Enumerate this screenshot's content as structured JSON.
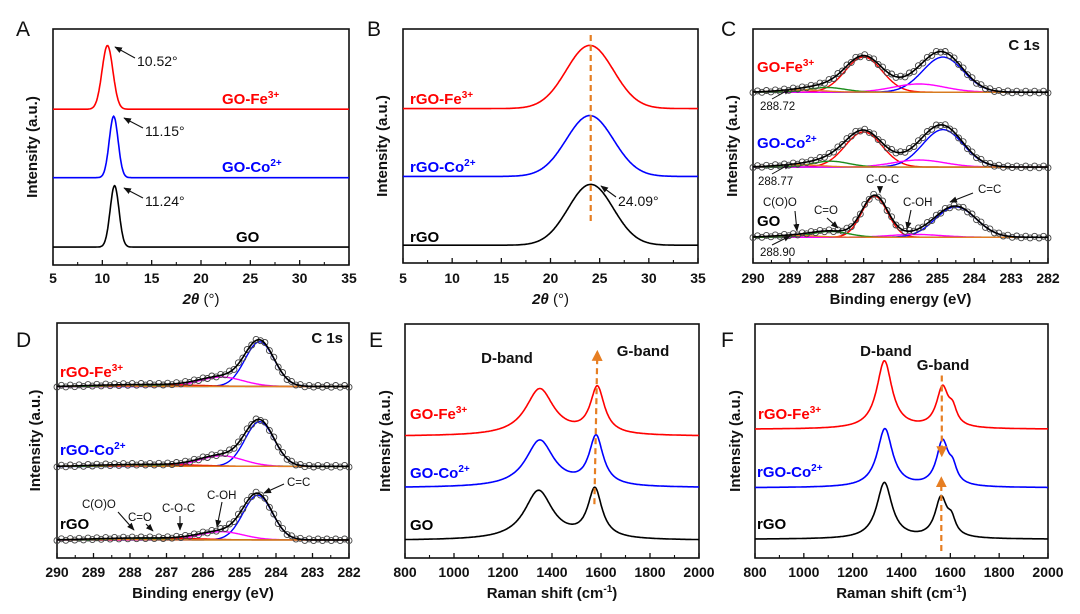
{
  "colors": {
    "red": "#ff0000",
    "blue": "#0000ff",
    "black": "#000000",
    "green": "#1a8c1a",
    "magenta": "#ff00ff",
    "orange": "#e67e22"
  },
  "chart_data": [
    {
      "panel": "A",
      "type": "line",
      "xlabel_italic": "2θ",
      "xlabel_unit": " (°)",
      "ylabel": "Intensity (a.u.)",
      "xlim": [
        5,
        35
      ],
      "xticks": [
        5,
        10,
        15,
        20,
        25,
        30,
        35
      ],
      "ylim": [
        0,
        1
      ],
      "series": [
        {
          "label": "GO-Fe",
          "sup": "3+",
          "color": "#ff0000",
          "offset": 0.66,
          "peaks": [
            [
              10.52,
              0.27,
              0.55,
              "g"
            ]
          ]
        },
        {
          "label": "GO-Co",
          "sup": "2+",
          "color": "#0000ff",
          "offset": 0.37,
          "peaks": [
            [
              11.15,
              0.26,
              0.45,
              "g"
            ]
          ]
        },
        {
          "label": "GO",
          "sup": "",
          "color": "#000000",
          "offset": 0.076,
          "peaks": [
            [
              11.24,
              0.26,
              0.45,
              "g"
            ]
          ]
        }
      ],
      "annotations": [
        "10.52°",
        "11.15°",
        "11.24°"
      ]
    },
    {
      "panel": "B",
      "type": "line",
      "xlabel_italic": "2θ",
      "xlabel_unit": " (°)",
      "ylabel": "Intensity (a.u.)",
      "xlim": [
        5,
        35
      ],
      "xticks": [
        5,
        10,
        15,
        20,
        25,
        30,
        35
      ],
      "ylim": [
        0,
        1
      ],
      "series": [
        {
          "label": "rGO-Fe",
          "sup": "3+",
          "color": "#ff0000",
          "offset": 0.66,
          "peaks": [
            [
              24.0,
              0.27,
              2.4,
              "g"
            ]
          ]
        },
        {
          "label": "rGO-Co",
          "sup": "2+",
          "color": "#0000ff",
          "offset": 0.37,
          "peaks": [
            [
              24.0,
              0.26,
              2.4,
              "g"
            ]
          ]
        },
        {
          "label": "rGO",
          "sup": "",
          "color": "#000000",
          "offset": 0.076,
          "peaks": [
            [
              24.09,
              0.26,
              2.3,
              "g"
            ]
          ]
        }
      ],
      "reference_line": 24.09,
      "annotations": [
        "24.09°"
      ]
    },
    {
      "panel": "C",
      "type": "xps-fit",
      "title": "C 1s",
      "xlabel": "Binding energy (eV)",
      "ylabel": "Intensity (a.u.)",
      "xlim": [
        290,
        282
      ],
      "xticks": [
        290,
        289,
        288,
        287,
        286,
        285,
        284,
        283,
        282
      ],
      "ylim": [
        0,
        1
      ],
      "series": [
        {
          "label": "GO-Fe",
          "sup": "3+",
          "color": "#ff0000",
          "offset": 0.73,
          "components": [
            {
              "color": "#ff0000",
              "peak": [
                287.0,
                0.15,
                0.5,
                "g"
              ]
            },
            {
              "color": "#0000ff",
              "peak": [
                284.85,
                0.15,
                0.55,
                "g"
              ]
            },
            {
              "color": "#ff00ff",
              "peak": [
                285.5,
                0.035,
                0.7,
                "g"
              ]
            },
            {
              "color": "#1a8c1a",
              "peak": [
                288.0,
                0.02,
                0.5,
                "g"
              ]
            },
            {
              "color": "#e67e22",
              "peak": [
                288.72,
                0.01,
                0.6,
                "g"
              ]
            }
          ]
        },
        {
          "label": "GO-Co",
          "sup": "2+",
          "color": "#0000ff",
          "offset": 0.41,
          "components": [
            {
              "color": "#ff0000",
              "peak": [
                287.0,
                0.15,
                0.5,
                "g"
              ]
            },
            {
              "color": "#0000ff",
              "peak": [
                284.85,
                0.16,
                0.55,
                "g"
              ]
            },
            {
              "color": "#ff00ff",
              "peak": [
                285.5,
                0.03,
                0.7,
                "g"
              ]
            },
            {
              "color": "#1a8c1a",
              "peak": [
                287.9,
                0.025,
                0.5,
                "g"
              ]
            },
            {
              "color": "#e67e22",
              "peak": [
                288.77,
                0.01,
                0.6,
                "g"
              ]
            }
          ]
        },
        {
          "label": "GO",
          "sup": "",
          "color": "#000000",
          "offset": 0.11,
          "components": [
            {
              "color": "#ff0000",
              "peak": [
                286.7,
                0.175,
                0.35,
                "g"
              ]
            },
            {
              "color": "#0000ff",
              "peak": [
                284.5,
                0.13,
                0.55,
                "g"
              ]
            },
            {
              "color": "#ff00ff",
              "peak": [
                285.6,
                0.012,
                0.7,
                "g"
              ]
            },
            {
              "color": "#1a8c1a",
              "peak": [
                287.9,
                0.025,
                0.5,
                "g"
              ]
            },
            {
              "color": "#e67e22",
              "peak": [
                288.9,
                0.008,
                0.6,
                "g"
              ]
            }
          ]
        }
      ],
      "small_labels": [
        "288.72",
        "288.77",
        "288.90"
      ],
      "annotations": [
        "C(O)O",
        "C=O",
        "C-O-C",
        "C-OH",
        "C=C"
      ]
    },
    {
      "panel": "D",
      "type": "xps-fit",
      "title": "C 1s",
      "xlabel": "Binding energy (eV)",
      "ylabel": "Intensity (a.u.)",
      "xlim": [
        290,
        282
      ],
      "xticks": [
        290,
        289,
        288,
        287,
        286,
        285,
        284,
        283,
        282
      ],
      "ylim": [
        0,
        1
      ],
      "series": [
        {
          "label": "rGO-Fe",
          "sup": "3+",
          "color": "#ff0000",
          "offset": 0.73,
          "components": [
            {
              "color": "#0000ff",
              "peak": [
                284.45,
                0.19,
                0.4,
                "g"
              ]
            },
            {
              "color": "#ff00ff",
              "peak": [
                285.5,
                0.04,
                0.6,
                "g"
              ]
            },
            {
              "color": "#ff0000",
              "peak": [
                286.7,
                0.006,
                0.8,
                "g"
              ]
            },
            {
              "color": "#1a8c1a",
              "peak": [
                287.8,
                0.005,
                0.6,
                "g"
              ]
            },
            {
              "color": "#e67e22",
              "peak": [
                288.8,
                0.004,
                0.6,
                "g"
              ]
            }
          ]
        },
        {
          "label": "rGO-Co",
          "sup": "2+",
          "color": "#0000ff",
          "offset": 0.39,
          "components": [
            {
              "color": "#0000ff",
              "peak": [
                284.45,
                0.19,
                0.4,
                "g"
              ]
            },
            {
              "color": "#ff00ff",
              "peak": [
                285.5,
                0.045,
                0.6,
                "g"
              ]
            },
            {
              "color": "#ff0000",
              "peak": [
                286.7,
                0.006,
                0.8,
                "g"
              ]
            },
            {
              "color": "#1a8c1a",
              "peak": [
                287.8,
                0.005,
                0.6,
                "g"
              ]
            },
            {
              "color": "#e67e22",
              "peak": [
                288.8,
                0.004,
                0.6,
                "g"
              ]
            }
          ]
        },
        {
          "label": "rGO",
          "sup": "",
          "color": "#000000",
          "offset": 0.077,
          "components": [
            {
              "color": "#0000ff",
              "peak": [
                284.5,
                0.19,
                0.4,
                "g"
              ]
            },
            {
              "color": "#ff00ff",
              "peak": [
                285.5,
                0.035,
                0.6,
                "g"
              ]
            },
            {
              "color": "#ff0000",
              "peak": [
                286.7,
                0.006,
                0.8,
                "g"
              ]
            },
            {
              "color": "#1a8c1a",
              "peak": [
                287.8,
                0.005,
                0.6,
                "g"
              ]
            },
            {
              "color": "#e67e22",
              "peak": [
                288.8,
                0.004,
                0.6,
                "g"
              ]
            }
          ]
        }
      ],
      "annotations": [
        "C(O)O",
        "C=O",
        "C-O-C",
        "C-OH",
        "C=C"
      ]
    },
    {
      "panel": "E",
      "type": "line",
      "xlabel": "Raman shift (cm",
      "xlabel_sup": "-1",
      "xlabel_end": ")",
      "ylabel": "Intensity (a.u.)",
      "xlim": [
        800,
        2000
      ],
      "xticks": [
        800,
        1000,
        1200,
        1400,
        1600,
        1800,
        2000
      ],
      "ylim": [
        0,
        1
      ],
      "series": [
        {
          "label": "GO-Fe",
          "sup": "3+",
          "color": "#ff0000",
          "offset": 0.52,
          "peaks": [
            [
              1350,
              0.2,
              70,
              "l"
            ],
            [
              1585,
              0.2,
              35,
              "l"
            ]
          ]
        },
        {
          "label": "GO-Co",
          "sup": "2+",
          "color": "#0000ff",
          "offset": 0.3,
          "peaks": [
            [
              1350,
              0.2,
              70,
              "l"
            ],
            [
              1580,
              0.21,
              35,
              "l"
            ]
          ]
        },
        {
          "label": "GO",
          "sup": "",
          "color": "#000000",
          "offset": 0.075,
          "peaks": [
            [
              1345,
              0.21,
              70,
              "l"
            ],
            [
              1575,
              0.21,
              35,
              "l"
            ]
          ]
        }
      ],
      "annotations": [
        "D-band",
        "G-band"
      ]
    },
    {
      "panel": "F",
      "type": "line",
      "xlabel": "Raman shift (cm",
      "xlabel_sup": "-1",
      "xlabel_end": ")",
      "ylabel": "Intensity (a.u.)",
      "xlim": [
        800,
        2000
      ],
      "xticks": [
        800,
        1000,
        1200,
        1400,
        1600,
        1800,
        2000
      ],
      "ylim": [
        0,
        1
      ],
      "series": [
        {
          "label": "rGO-Fe",
          "sup": "3+",
          "color": "#ff0000",
          "offset": 0.55,
          "peaks": [
            [
              1330,
              0.29,
              38,
              "l"
            ],
            [
              1568,
              0.17,
              30,
              "l"
            ],
            [
              1610,
              0.06,
              20,
              "l"
            ]
          ]
        },
        {
          "label": "rGO-Co",
          "sup": "2+",
          "color": "#0000ff",
          "offset": 0.3,
          "peaks": [
            [
              1332,
              0.25,
              38,
              "l"
            ],
            [
              1568,
              0.19,
              30,
              "l"
            ],
            [
              1610,
              0.06,
              20,
              "l"
            ]
          ]
        },
        {
          "label": "rGO",
          "sup": "",
          "color": "#000000",
          "offset": 0.08,
          "peaks": [
            [
              1330,
              0.24,
              38,
              "l"
            ],
            [
              1562,
              0.17,
              30,
              "l"
            ],
            [
              1605,
              0.06,
              20,
              "l"
            ]
          ]
        }
      ],
      "annotations": [
        "D-band",
        "G-band"
      ]
    }
  ]
}
